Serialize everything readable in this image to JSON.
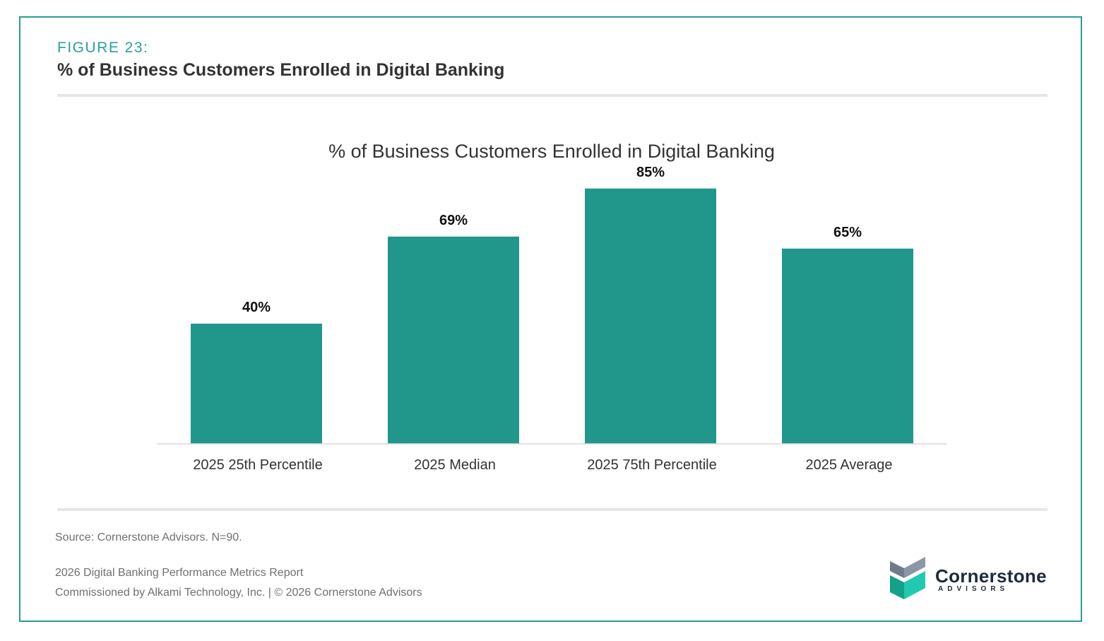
{
  "figure": {
    "label": "FIGURE 23:",
    "title": "% of Business Customers Enrolled in Digital Banking"
  },
  "chart_data": {
    "type": "bar",
    "title": "% of Business Customers Enrolled in Digital Banking",
    "categories": [
      "2025 25th Percentile",
      "2025 Median",
      "2025 75th Percentile",
      "2025 Average"
    ],
    "values": [
      40,
      69,
      85,
      65
    ],
    "value_labels": [
      "40%",
      "69%",
      "85%",
      "65%"
    ],
    "xlabel": "",
    "ylabel": "",
    "ylim": [
      0,
      100
    ],
    "grid": false,
    "legend": "none",
    "bar_color": "#21968a"
  },
  "footer": {
    "source": "Source: Cornerstone Advisors. N=90.",
    "report": "2026 Digital Banking Performance Metrics Report",
    "commission": "Commissioned by Alkami Technology, Inc.  |  © 2026 Cornerstone Advisors"
  },
  "logo": {
    "name": "Cornerstone",
    "sub": "ADVISORS",
    "icon": "cornerstone-cube-icon"
  },
  "colors": {
    "accent": "#2a9d8f",
    "bar": "#21968a",
    "text_dark": "#333333",
    "text_muted": "#707070"
  }
}
